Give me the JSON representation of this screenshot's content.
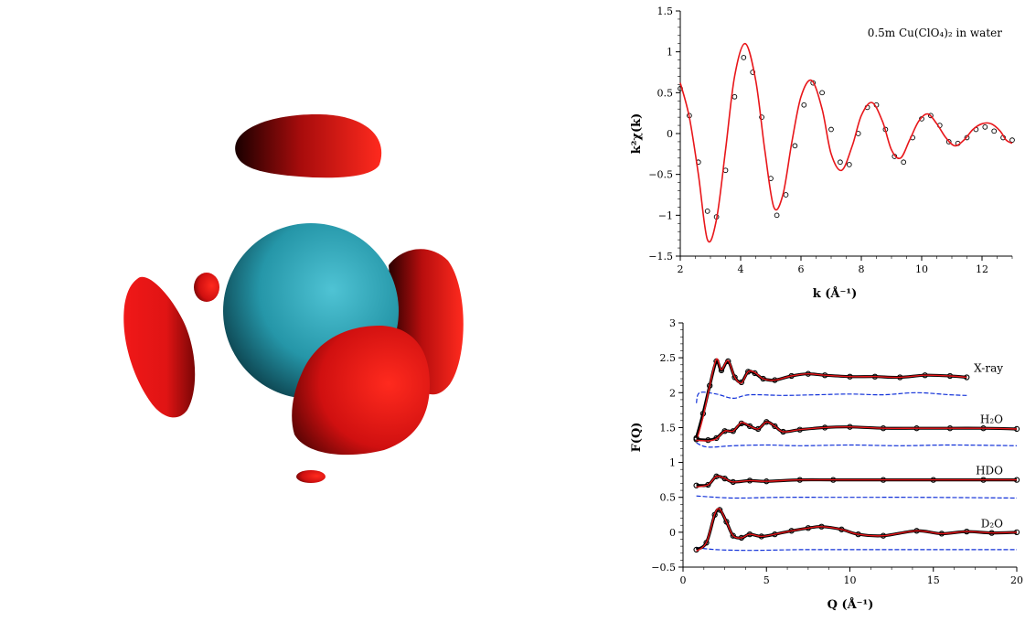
{
  "viz": {
    "central_sphere_color": "#2aa3b6",
    "lobe_color": "#e8161a"
  },
  "chart_data": [
    {
      "type": "scatter",
      "annotation": "0.5m Cu(ClO₄)₂ in water",
      "xlabel": "k (Å⁻¹)",
      "ylabel": "k²χ(k)",
      "xlim": [
        2,
        13
      ],
      "ylim": [
        -1.5,
        1.5
      ],
      "xticks": [
        2,
        4,
        6,
        8,
        10,
        12
      ],
      "yticks": [
        -1.5,
        -1,
        -0.5,
        0,
        0.5,
        1,
        1.5
      ],
      "tick_labels_x": [
        "2",
        "4",
        "6",
        "8",
        "10",
        "12"
      ],
      "tick_labels_y": [
        "−1.5",
        "−1",
        "−0.5",
        "0",
        "0.5",
        "1",
        "1.5"
      ],
      "series": [
        {
          "style": "markers",
          "color": "#000000",
          "points": [
            [
              2.0,
              0.55
            ],
            [
              2.3,
              0.22
            ],
            [
              2.6,
              -0.35
            ],
            [
              2.9,
              -0.95
            ],
            [
              3.2,
              -1.02
            ],
            [
              3.5,
              -0.45
            ],
            [
              3.8,
              0.45
            ],
            [
              4.1,
              0.93
            ],
            [
              4.4,
              0.75
            ],
            [
              4.7,
              0.2
            ],
            [
              5.0,
              -0.55
            ],
            [
              5.2,
              -1.0
            ],
            [
              5.5,
              -0.75
            ],
            [
              5.8,
              -0.15
            ],
            [
              6.1,
              0.35
            ],
            [
              6.4,
              0.62
            ],
            [
              6.7,
              0.5
            ],
            [
              7.0,
              0.05
            ],
            [
              7.3,
              -0.35
            ],
            [
              7.6,
              -0.38
            ],
            [
              7.9,
              0.0
            ],
            [
              8.2,
              0.32
            ],
            [
              8.5,
              0.35
            ],
            [
              8.8,
              0.05
            ],
            [
              9.1,
              -0.28
            ],
            [
              9.4,
              -0.35
            ],
            [
              9.7,
              -0.05
            ],
            [
              10.0,
              0.18
            ],
            [
              10.3,
              0.22
            ],
            [
              10.6,
              0.1
            ],
            [
              10.9,
              -0.1
            ],
            [
              11.2,
              -0.12
            ],
            [
              11.5,
              -0.05
            ],
            [
              11.8,
              0.05
            ],
            [
              12.1,
              0.08
            ],
            [
              12.4,
              0.03
            ],
            [
              12.7,
              -0.05
            ],
            [
              13.0,
              -0.08
            ]
          ]
        },
        {
          "style": "line",
          "color": "#e8161a",
          "points": [
            [
              2.0,
              0.62
            ],
            [
              2.3,
              0.2
            ],
            [
              2.6,
              -0.5
            ],
            [
              2.9,
              -1.3
            ],
            [
              3.2,
              -1.05
            ],
            [
              3.5,
              -0.2
            ],
            [
              3.8,
              0.7
            ],
            [
              4.15,
              1.1
            ],
            [
              4.5,
              0.65
            ],
            [
              4.8,
              -0.2
            ],
            [
              5.1,
              -0.9
            ],
            [
              5.4,
              -0.75
            ],
            [
              5.7,
              -0.1
            ],
            [
              6.0,
              0.45
            ],
            [
              6.35,
              0.65
            ],
            [
              6.7,
              0.3
            ],
            [
              7.0,
              -0.25
            ],
            [
              7.35,
              -0.45
            ],
            [
              7.7,
              -0.15
            ],
            [
              8.0,
              0.22
            ],
            [
              8.35,
              0.38
            ],
            [
              8.7,
              0.15
            ],
            [
              9.0,
              -0.2
            ],
            [
              9.3,
              -0.3
            ],
            [
              9.6,
              -0.08
            ],
            [
              9.9,
              0.15
            ],
            [
              10.2,
              0.24
            ],
            [
              10.5,
              0.12
            ],
            [
              10.8,
              -0.05
            ],
            [
              11.1,
              -0.15
            ],
            [
              11.4,
              -0.08
            ],
            [
              11.7,
              0.05
            ],
            [
              12.0,
              0.12
            ],
            [
              12.3,
              0.12
            ],
            [
              12.6,
              0.03
            ],
            [
              12.8,
              -0.08
            ],
            [
              13.0,
              -0.12
            ]
          ]
        }
      ]
    },
    {
      "type": "line",
      "xlabel": "Q (Å⁻¹)",
      "ylabel": "F(Q)",
      "xlim": [
        0,
        20
      ],
      "ylim": [
        -0.5,
        3
      ],
      "xticks": [
        0,
        5,
        10,
        15,
        20
      ],
      "yticks": [
        -0.5,
        0,
        0.5,
        1,
        1.5,
        2,
        2.5,
        3
      ],
      "tick_labels_x": [
        "0",
        "5",
        "10",
        "15",
        "20"
      ],
      "tick_labels_y": [
        "−0.5",
        "0",
        "0.5",
        "1",
        "1.5",
        "2",
        "2.5",
        "3"
      ],
      "series": [
        {
          "name": "X-ray",
          "data_points": [
            [
              0.8,
              1.35
            ],
            [
              1.2,
              1.7
            ],
            [
              1.6,
              2.1
            ],
            [
              2.0,
              2.45
            ],
            [
              2.3,
              2.32
            ],
            [
              2.7,
              2.45
            ],
            [
              3.1,
              2.22
            ],
            [
              3.5,
              2.15
            ],
            [
              3.9,
              2.3
            ],
            [
              4.3,
              2.28
            ],
            [
              4.8,
              2.2
            ],
            [
              5.5,
              2.18
            ],
            [
              6.5,
              2.24
            ],
            [
              7.5,
              2.27
            ],
            [
              8.5,
              2.25
            ],
            [
              10,
              2.23
            ],
            [
              11.5,
              2.23
            ],
            [
              13,
              2.22
            ],
            [
              14.5,
              2.25
            ],
            [
              16,
              2.24
            ],
            [
              17,
              2.22
            ]
          ],
          "fit_points": [
            [
              0.8,
              1.3
            ],
            [
              1.2,
              1.65
            ],
            [
              1.6,
              2.1
            ],
            [
              2.0,
              2.48
            ],
            [
              2.3,
              2.33
            ],
            [
              2.7,
              2.46
            ],
            [
              3.1,
              2.22
            ],
            [
              3.5,
              2.14
            ],
            [
              3.9,
              2.3
            ],
            [
              4.3,
              2.29
            ],
            [
              4.8,
              2.2
            ],
            [
              5.5,
              2.18
            ],
            [
              6.5,
              2.24
            ],
            [
              7.5,
              2.27
            ],
            [
              8.5,
              2.25
            ],
            [
              10,
              2.23
            ],
            [
              11.5,
              2.23
            ],
            [
              13,
              2.22
            ],
            [
              14.5,
              2.25
            ],
            [
              16,
              2.24
            ],
            [
              17,
              2.22
            ]
          ],
          "residual_points": [
            [
              0.8,
              1.85
            ],
            [
              1.0,
              2.0
            ],
            [
              2,
              1.98
            ],
            [
              3,
              1.92
            ],
            [
              4,
              1.97
            ],
            [
              6,
              1.96
            ],
            [
              8,
              1.97
            ],
            [
              10,
              1.98
            ],
            [
              12,
              1.97
            ],
            [
              14,
              2.0
            ],
            [
              16,
              1.97
            ],
            [
              17,
              1.96
            ]
          ]
        },
        {
          "name": "H₂O",
          "data_points": [
            [
              0.8,
              1.33
            ],
            [
              1.5,
              1.32
            ],
            [
              2.0,
              1.35
            ],
            [
              2.5,
              1.45
            ],
            [
              3.0,
              1.45
            ],
            [
              3.5,
              1.56
            ],
            [
              4.0,
              1.52
            ],
            [
              4.5,
              1.48
            ],
            [
              5.0,
              1.58
            ],
            [
              5.5,
              1.52
            ],
            [
              6.0,
              1.44
            ],
            [
              7.0,
              1.47
            ],
            [
              8.5,
              1.5
            ],
            [
              10,
              1.51
            ],
            [
              12,
              1.49
            ],
            [
              14,
              1.49
            ],
            [
              16,
              1.49
            ],
            [
              18,
              1.49
            ],
            [
              20,
              1.48
            ]
          ],
          "fit_points": [
            [
              0.8,
              1.32
            ],
            [
              1.5,
              1.31
            ],
            [
              2.0,
              1.34
            ],
            [
              2.5,
              1.45
            ],
            [
              3.0,
              1.45
            ],
            [
              3.5,
              1.57
            ],
            [
              4.0,
              1.52
            ],
            [
              4.5,
              1.48
            ],
            [
              5.0,
              1.58
            ],
            [
              5.5,
              1.52
            ],
            [
              6.0,
              1.44
            ],
            [
              7.0,
              1.47
            ],
            [
              8.5,
              1.5
            ],
            [
              10,
              1.51
            ],
            [
              12,
              1.49
            ],
            [
              14,
              1.49
            ],
            [
              16,
              1.49
            ],
            [
              18,
              1.49
            ],
            [
              20,
              1.48
            ]
          ],
          "residual_points": [
            [
              0.8,
              1.28
            ],
            [
              1.5,
              1.22
            ],
            [
              3,
              1.24
            ],
            [
              5,
              1.25
            ],
            [
              7,
              1.24
            ],
            [
              10,
              1.25
            ],
            [
              13,
              1.24
            ],
            [
              16,
              1.25
            ],
            [
              20,
              1.24
            ]
          ]
        },
        {
          "name": "HDO",
          "data_points": [
            [
              0.8,
              0.67
            ],
            [
              1.5,
              0.68
            ],
            [
              2.0,
              0.8
            ],
            [
              2.5,
              0.77
            ],
            [
              3.0,
              0.72
            ],
            [
              4.0,
              0.74
            ],
            [
              5.0,
              0.73
            ],
            [
              7.0,
              0.75
            ],
            [
              9.0,
              0.75
            ],
            [
              12,
              0.75
            ],
            [
              15,
              0.75
            ],
            [
              18,
              0.75
            ],
            [
              20,
              0.75
            ]
          ],
          "fit_points": [
            [
              0.8,
              0.65
            ],
            [
              1.5,
              0.68
            ],
            [
              2.0,
              0.8
            ],
            [
              2.5,
              0.77
            ],
            [
              3.0,
              0.72
            ],
            [
              4.0,
              0.74
            ],
            [
              5.0,
              0.73
            ],
            [
              7.0,
              0.75
            ],
            [
              9.0,
              0.75
            ],
            [
              12,
              0.75
            ],
            [
              15,
              0.75
            ],
            [
              18,
              0.75
            ],
            [
              20,
              0.75
            ]
          ],
          "residual_points": [
            [
              0.8,
              0.52
            ],
            [
              3,
              0.49
            ],
            [
              6,
              0.5
            ],
            [
              10,
              0.5
            ],
            [
              14,
              0.5
            ],
            [
              20,
              0.49
            ]
          ]
        },
        {
          "name": "D₂O",
          "data_points": [
            [
              0.8,
              -0.25
            ],
            [
              1.4,
              -0.15
            ],
            [
              1.9,
              0.25
            ],
            [
              2.2,
              0.32
            ],
            [
              2.6,
              0.15
            ],
            [
              3.0,
              -0.05
            ],
            [
              3.5,
              -0.08
            ],
            [
              4.0,
              -0.03
            ],
            [
              4.7,
              -0.06
            ],
            [
              5.5,
              -0.03
            ],
            [
              6.5,
              0.02
            ],
            [
              7.5,
              0.06
            ],
            [
              8.3,
              0.08
            ],
            [
              9.5,
              0.04
            ],
            [
              10.5,
              -0.03
            ],
            [
              12,
              -0.05
            ],
            [
              14,
              0.02
            ],
            [
              15.5,
              -0.02
            ],
            [
              17,
              0.01
            ],
            [
              18.5,
              -0.01
            ],
            [
              20,
              0.0
            ]
          ],
          "fit_points": [
            [
              0.8,
              -0.27
            ],
            [
              1.4,
              -0.15
            ],
            [
              1.9,
              0.26
            ],
            [
              2.2,
              0.33
            ],
            [
              2.6,
              0.15
            ],
            [
              3.0,
              -0.05
            ],
            [
              3.5,
              -0.08
            ],
            [
              4.0,
              -0.03
            ],
            [
              4.7,
              -0.06
            ],
            [
              5.5,
              -0.03
            ],
            [
              6.5,
              0.02
            ],
            [
              7.5,
              0.06
            ],
            [
              8.3,
              0.08
            ],
            [
              9.5,
              0.04
            ],
            [
              10.5,
              -0.03
            ],
            [
              12,
              -0.05
            ],
            [
              14,
              0.02
            ],
            [
              15.5,
              -0.02
            ],
            [
              17,
              0.01
            ],
            [
              18.5,
              -0.01
            ],
            [
              20,
              0.0
            ]
          ],
          "residual_points": [
            [
              0.8,
              -0.22
            ],
            [
              2,
              -0.25
            ],
            [
              4,
              -0.26
            ],
            [
              7,
              -0.25
            ],
            [
              10,
              -0.25
            ],
            [
              14,
              -0.25
            ],
            [
              20,
              -0.25
            ]
          ]
        }
      ],
      "colors": {
        "data": "#000000",
        "fit": "#e8161a",
        "residual": "#1030d8"
      }
    }
  ]
}
